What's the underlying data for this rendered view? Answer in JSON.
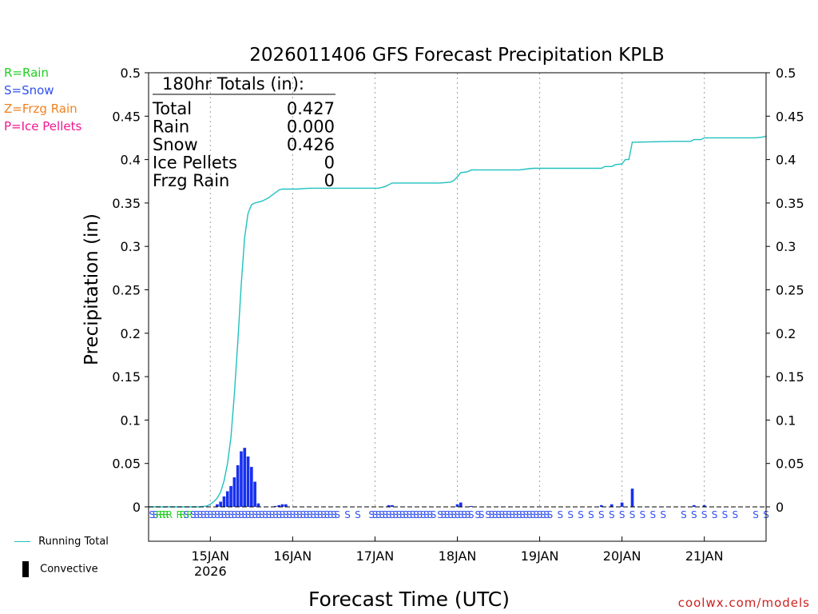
{
  "chart_data": {
    "type": "bar",
    "title": "2026011406 GFS Forecast Precipitation KPLB",
    "xlabel": "Forecast Time (UTC)",
    "ylabel": "Precipitation (in)",
    "ylim": [
      0,
      0.5
    ],
    "xlim_hours": [
      0,
      180
    ],
    "y_ticks": [
      "0",
      "0.05",
      "0.1",
      "0.15",
      "0.2",
      "0.25",
      "0.3",
      "0.35",
      "0.4",
      "0.45",
      "0.5"
    ],
    "x_ticks": [
      {
        "hour": 18,
        "label": "15JAN",
        "sublabel": "2026"
      },
      {
        "hour": 42,
        "label": "16JAN",
        "sublabel": ""
      },
      {
        "hour": 66,
        "label": "17JAN",
        "sublabel": ""
      },
      {
        "hour": 90,
        "label": "18JAN",
        "sublabel": ""
      },
      {
        "hour": 114,
        "label": "19JAN",
        "sublabel": ""
      },
      {
        "hour": 138,
        "label": "20JAN",
        "sublabel": ""
      },
      {
        "hour": 162,
        "label": "21JAN",
        "sublabel": ""
      }
    ],
    "bars": [
      {
        "hour": 20,
        "value": 0.003
      },
      {
        "hour": 21,
        "value": 0.006
      },
      {
        "hour": 22,
        "value": 0.012
      },
      {
        "hour": 23,
        "value": 0.018
      },
      {
        "hour": 24,
        "value": 0.024
      },
      {
        "hour": 25,
        "value": 0.034
      },
      {
        "hour": 26,
        "value": 0.048
      },
      {
        "hour": 27,
        "value": 0.064
      },
      {
        "hour": 28,
        "value": 0.068
      },
      {
        "hour": 29,
        "value": 0.058
      },
      {
        "hour": 30,
        "value": 0.046
      },
      {
        "hour": 31,
        "value": 0.029
      },
      {
        "hour": 32,
        "value": 0.004
      },
      {
        "hour": 37,
        "value": 0.001
      },
      {
        "hour": 38,
        "value": 0.002
      },
      {
        "hour": 39,
        "value": 0.003
      },
      {
        "hour": 40,
        "value": 0.003
      },
      {
        "hour": 70,
        "value": 0.002
      },
      {
        "hour": 71,
        "value": 0.002
      },
      {
        "hour": 90,
        "value": 0.003
      },
      {
        "hour": 91,
        "value": 0.005
      },
      {
        "hour": 94,
        "value": 0.001
      },
      {
        "hour": 132,
        "value": 0.002
      },
      {
        "hour": 135,
        "value": 0.003
      },
      {
        "hour": 138,
        "value": 0.005
      },
      {
        "hour": 141,
        "value": 0.021
      },
      {
        "hour": 159,
        "value": 0.002
      },
      {
        "hour": 162,
        "value": 0.002
      }
    ],
    "series": [
      {
        "name": "Running Total",
        "color": "#20c0c0",
        "points": [
          [
            0,
            0
          ],
          [
            15,
            0
          ],
          [
            17,
            0.001
          ],
          [
            18,
            0.003
          ],
          [
            19,
            0.006
          ],
          [
            20,
            0.01
          ],
          [
            21,
            0.017
          ],
          [
            22,
            0.03
          ],
          [
            23,
            0.05
          ],
          [
            24,
            0.08
          ],
          [
            25,
            0.13
          ],
          [
            26,
            0.19
          ],
          [
            27,
            0.255
          ],
          [
            28,
            0.31
          ],
          [
            29,
            0.338
          ],
          [
            30,
            0.348
          ],
          [
            31,
            0.35
          ],
          [
            32,
            0.351
          ],
          [
            33,
            0.352
          ],
          [
            34,
            0.354
          ],
          [
            35,
            0.356
          ],
          [
            36,
            0.359
          ],
          [
            37,
            0.362
          ],
          [
            38,
            0.365
          ],
          [
            39,
            0.366
          ],
          [
            43,
            0.366
          ],
          [
            47,
            0.367
          ],
          [
            60,
            0.367
          ],
          [
            67,
            0.367
          ],
          [
            68,
            0.368
          ],
          [
            69,
            0.369
          ],
          [
            70,
            0.371
          ],
          [
            71,
            0.373
          ],
          [
            75,
            0.373
          ],
          [
            85,
            0.373
          ],
          [
            88,
            0.374
          ],
          [
            89,
            0.376
          ],
          [
            90,
            0.38
          ],
          [
            91,
            0.385
          ],
          [
            93,
            0.386
          ],
          [
            94,
            0.388
          ],
          [
            100,
            0.388
          ],
          [
            108,
            0.388
          ],
          [
            110,
            0.389
          ],
          [
            112,
            0.39
          ],
          [
            124,
            0.39
          ],
          [
            132,
            0.39
          ],
          [
            133,
            0.392
          ],
          [
            135,
            0.392
          ],
          [
            136,
            0.394
          ],
          [
            138,
            0.395
          ],
          [
            139,
            0.4
          ],
          [
            140,
            0.4
          ],
          [
            141,
            0.42
          ],
          [
            153,
            0.421
          ],
          [
            158,
            0.421
          ],
          [
            159,
            0.423
          ],
          [
            161,
            0.423
          ],
          [
            162,
            0.425
          ],
          [
            170,
            0.425
          ],
          [
            177,
            0.425
          ],
          [
            179,
            0.426
          ],
          [
            180,
            0.427
          ]
        ]
      }
    ],
    "precip_type_marks": [
      {
        "hour": 1,
        "type": "S"
      },
      {
        "hour": 2,
        "type": "S"
      },
      {
        "hour": 3,
        "type": "R"
      },
      {
        "hour": 4,
        "type": "R"
      },
      {
        "hour": 5,
        "type": "R"
      },
      {
        "hour": 6,
        "type": "R"
      },
      {
        "hour": 9,
        "type": "R"
      },
      {
        "hour": 10,
        "type": "R"
      },
      {
        "hour": 11,
        "type": "S"
      },
      {
        "hour": 12,
        "type": "R"
      },
      {
        "hour": 13,
        "type": "S"
      },
      {
        "hour": 14,
        "type": "S"
      },
      {
        "hour": 15,
        "type": "S"
      },
      {
        "hour": 16,
        "type": "S"
      },
      {
        "hour": 17,
        "type": "S"
      },
      {
        "hour": 18,
        "type": "S"
      },
      {
        "hour": 19,
        "type": "S"
      },
      {
        "hour": 20,
        "type": "S"
      },
      {
        "hour": 21,
        "type": "S"
      },
      {
        "hour": 22,
        "type": "S"
      },
      {
        "hour": 23,
        "type": "S"
      },
      {
        "hour": 24,
        "type": "S"
      },
      {
        "hour": 25,
        "type": "S"
      },
      {
        "hour": 26,
        "type": "S"
      },
      {
        "hour": 27,
        "type": "S"
      },
      {
        "hour": 28,
        "type": "S"
      },
      {
        "hour": 29,
        "type": "S"
      },
      {
        "hour": 30,
        "type": "S"
      },
      {
        "hour": 31,
        "type": "S"
      },
      {
        "hour": 32,
        "type": "S"
      },
      {
        "hour": 33,
        "type": "S"
      },
      {
        "hour": 34,
        "type": "S"
      },
      {
        "hour": 35,
        "type": "S"
      },
      {
        "hour": 36,
        "type": "S"
      },
      {
        "hour": 37,
        "type": "S"
      },
      {
        "hour": 38,
        "type": "S"
      },
      {
        "hour": 39,
        "type": "S"
      },
      {
        "hour": 40,
        "type": "S"
      },
      {
        "hour": 41,
        "type": "S"
      },
      {
        "hour": 42,
        "type": "S"
      },
      {
        "hour": 43,
        "type": "S"
      },
      {
        "hour": 44,
        "type": "S"
      },
      {
        "hour": 45,
        "type": "S"
      },
      {
        "hour": 46,
        "type": "S"
      },
      {
        "hour": 47,
        "type": "S"
      },
      {
        "hour": 48,
        "type": "S"
      },
      {
        "hour": 49,
        "type": "S"
      },
      {
        "hour": 50,
        "type": "S"
      },
      {
        "hour": 51,
        "type": "S"
      },
      {
        "hour": 52,
        "type": "S"
      },
      {
        "hour": 53,
        "type": "S"
      },
      {
        "hour": 54,
        "type": "S"
      },
      {
        "hour": 55,
        "type": "S"
      },
      {
        "hour": 58,
        "type": "S"
      },
      {
        "hour": 61,
        "type": "S"
      },
      {
        "hour": 65,
        "type": "S"
      },
      {
        "hour": 66,
        "type": "S"
      },
      {
        "hour": 67,
        "type": "S"
      },
      {
        "hour": 68,
        "type": "S"
      },
      {
        "hour": 69,
        "type": "S"
      },
      {
        "hour": 70,
        "type": "S"
      },
      {
        "hour": 71,
        "type": "S"
      },
      {
        "hour": 72,
        "type": "S"
      },
      {
        "hour": 73,
        "type": "S"
      },
      {
        "hour": 74,
        "type": "S"
      },
      {
        "hour": 75,
        "type": "S"
      },
      {
        "hour": 76,
        "type": "S"
      },
      {
        "hour": 77,
        "type": "S"
      },
      {
        "hour": 78,
        "type": "S"
      },
      {
        "hour": 79,
        "type": "S"
      },
      {
        "hour": 80,
        "type": "S"
      },
      {
        "hour": 81,
        "type": "S"
      },
      {
        "hour": 82,
        "type": "S"
      },
      {
        "hour": 83,
        "type": "S"
      },
      {
        "hour": 85,
        "type": "S"
      },
      {
        "hour": 86,
        "type": "S"
      },
      {
        "hour": 87,
        "type": "S"
      },
      {
        "hour": 88,
        "type": "S"
      },
      {
        "hour": 89,
        "type": "S"
      },
      {
        "hour": 90,
        "type": "S"
      },
      {
        "hour": 91,
        "type": "S"
      },
      {
        "hour": 92,
        "type": "S"
      },
      {
        "hour": 93,
        "type": "S"
      },
      {
        "hour": 94,
        "type": "S"
      },
      {
        "hour": 96,
        "type": "S"
      },
      {
        "hour": 97,
        "type": "S"
      },
      {
        "hour": 99,
        "type": "S"
      },
      {
        "hour": 100,
        "type": "S"
      },
      {
        "hour": 101,
        "type": "S"
      },
      {
        "hour": 102,
        "type": "S"
      },
      {
        "hour": 103,
        "type": "S"
      },
      {
        "hour": 104,
        "type": "S"
      },
      {
        "hour": 105,
        "type": "S"
      },
      {
        "hour": 106,
        "type": "S"
      },
      {
        "hour": 107,
        "type": "S"
      },
      {
        "hour": 108,
        "type": "S"
      },
      {
        "hour": 109,
        "type": "S"
      },
      {
        "hour": 110,
        "type": "S"
      },
      {
        "hour": 111,
        "type": "S"
      },
      {
        "hour": 112,
        "type": "S"
      },
      {
        "hour": 113,
        "type": "S"
      },
      {
        "hour": 114,
        "type": "S"
      },
      {
        "hour": 115,
        "type": "S"
      },
      {
        "hour": 116,
        "type": "S"
      },
      {
        "hour": 117,
        "type": "S"
      },
      {
        "hour": 120,
        "type": "S"
      },
      {
        "hour": 123,
        "type": "S"
      },
      {
        "hour": 126,
        "type": "S"
      },
      {
        "hour": 129,
        "type": "S"
      },
      {
        "hour": 132,
        "type": "S"
      },
      {
        "hour": 135,
        "type": "S"
      },
      {
        "hour": 138,
        "type": "S"
      },
      {
        "hour": 141,
        "type": "S"
      },
      {
        "hour": 144,
        "type": "S"
      },
      {
        "hour": 147,
        "type": "S"
      },
      {
        "hour": 150,
        "type": "S"
      },
      {
        "hour": 156,
        "type": "S"
      },
      {
        "hour": 159,
        "type": "S"
      },
      {
        "hour": 162,
        "type": "S"
      },
      {
        "hour": 165,
        "type": "S"
      },
      {
        "hour": 168,
        "type": "S"
      },
      {
        "hour": 171,
        "type": "S"
      },
      {
        "hour": 177,
        "type": "S"
      },
      {
        "hour": 180,
        "type": "S"
      }
    ],
    "totals_box": {
      "heading": "180hr Totals (in):",
      "rows": [
        {
          "label": "Total",
          "value": "0.427"
        },
        {
          "label": "Rain",
          "value": "0.000"
        },
        {
          "label": "Snow",
          "value": "0.426"
        },
        {
          "label": "Ice Pellets",
          "value": "0"
        },
        {
          "label": "Frzg Rain",
          "value": "0"
        }
      ]
    }
  },
  "legend": {
    "rain": {
      "text": "R=Rain",
      "color": "#20d020"
    },
    "snow": {
      "text": "S=Snow",
      "color": "#3050f0"
    },
    "frzg": {
      "text": "Z=Frzg Rain",
      "color": "#f08020"
    },
    "ice": {
      "text": "P=Ice Pellets",
      "color": "#f01890"
    }
  },
  "bottom_legend": {
    "running_total": "Running Total",
    "convective": "Convective"
  },
  "colors": {
    "bar": "#1830f0",
    "line": "#20c0c0",
    "grid": "#a0a0a0",
    "credit": "#cc2020"
  },
  "credit": "coolwx.com/models"
}
